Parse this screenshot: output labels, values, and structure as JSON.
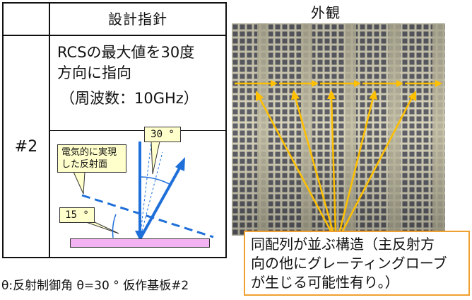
{
  "table": {
    "header": "設計指針",
    "row_id": "#2",
    "spec_line1": "RCSの最大値を30度",
    "spec_line2": "方向に指向",
    "spec_line3": "（周波数：10GHz）",
    "angle_label_30": "30 °",
    "reflector_label_line1": "電気的に実現",
    "reflector_label_line2": "した反射面",
    "angle_label_15": "15 °"
  },
  "caption": "θ:反射制御角 θ=30 ° 仮作基板#2",
  "photo": {
    "title": "外観"
  },
  "note": {
    "line1": "同配列が並ぶ構造（主反射方",
    "line2": "向の他にグレーティングローブ",
    "line3": "が生じる可能性有り。）"
  },
  "colors": {
    "substrate": "#f3b3f3",
    "callout_fill": "#ffffcc",
    "arrow_blue": "#1e6fd9",
    "arrow_yellow": "#ffc000",
    "note_border": "#f0a030"
  }
}
